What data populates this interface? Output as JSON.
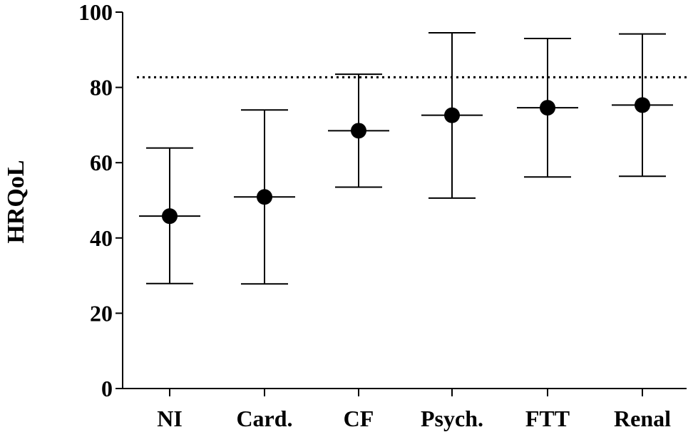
{
  "chart_data": {
    "type": "scatter",
    "title": "",
    "xlabel": "",
    "ylabel": "HRQoL",
    "ylim": [
      0,
      100
    ],
    "yticks": [
      0,
      20,
      40,
      60,
      80,
      100
    ],
    "grid": false,
    "categories": [
      "NI",
      "Card.",
      "CF",
      "Psych.",
      "FTT",
      "Renal"
    ],
    "series": [
      {
        "values": [
          45.8,
          50.9,
          68.5,
          72.6,
          74.6,
          75.3
        ],
        "error_low": [
          27.9,
          27.8,
          53.5,
          50.6,
          56.2,
          56.4
        ],
        "error_high": [
          63.9,
          74.0,
          83.5,
          94.5,
          93.0,
          94.2
        ]
      }
    ],
    "reference_line": {
      "y": 82.7,
      "style": "dotted"
    },
    "colors": {
      "marker": "#000000",
      "axis": "#000000"
    }
  }
}
